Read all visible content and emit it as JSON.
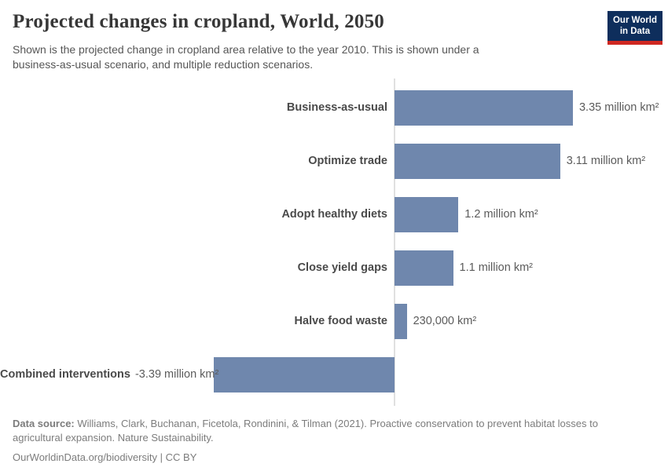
{
  "chart_data": {
    "type": "bar",
    "orientation": "horizontal",
    "title": "Projected changes in cropland, World, 2050",
    "subtitle": "Shown is the projected change in cropland area relative to the year 2010. This is shown under a business-as-usual scenario, and multiple reduction scenarios.",
    "categories": [
      "Business-as-usual",
      "Optimize trade",
      "Adopt healthy diets",
      "Close yield gaps",
      "Halve food waste",
      "Combined interventions"
    ],
    "values_million_km2": [
      3.35,
      3.11,
      1.2,
      1.1,
      0.23,
      -3.39
    ],
    "value_labels": [
      "3.35 million km²",
      "3.11 million km²",
      "1.2 million km²",
      "1.1 million km²",
      "230,000 km²",
      "-3.39 million km²"
    ],
    "xlim_million_km2": [
      -3.39,
      3.35
    ],
    "bar_color": "#6f87ad",
    "axis_color": "#e0e0e0",
    "grid": false,
    "legend": false
  },
  "logo": {
    "line1": "Our World",
    "line2": "in Data",
    "bg_color": "#0e2e5c",
    "accent_color": "#cf2721"
  },
  "footer": {
    "data_source_label": "Data source:",
    "data_source_text": "Williams, Clark, Buchanan, Ficetola, Rondinini, & Tilman (2021). Proactive conservation to prevent habitat losses to agricultural expansion. Nature Sustainability.",
    "link_text": "OurWorldinData.org/biodiversity",
    "separator": "|",
    "license_text": "CC BY"
  }
}
